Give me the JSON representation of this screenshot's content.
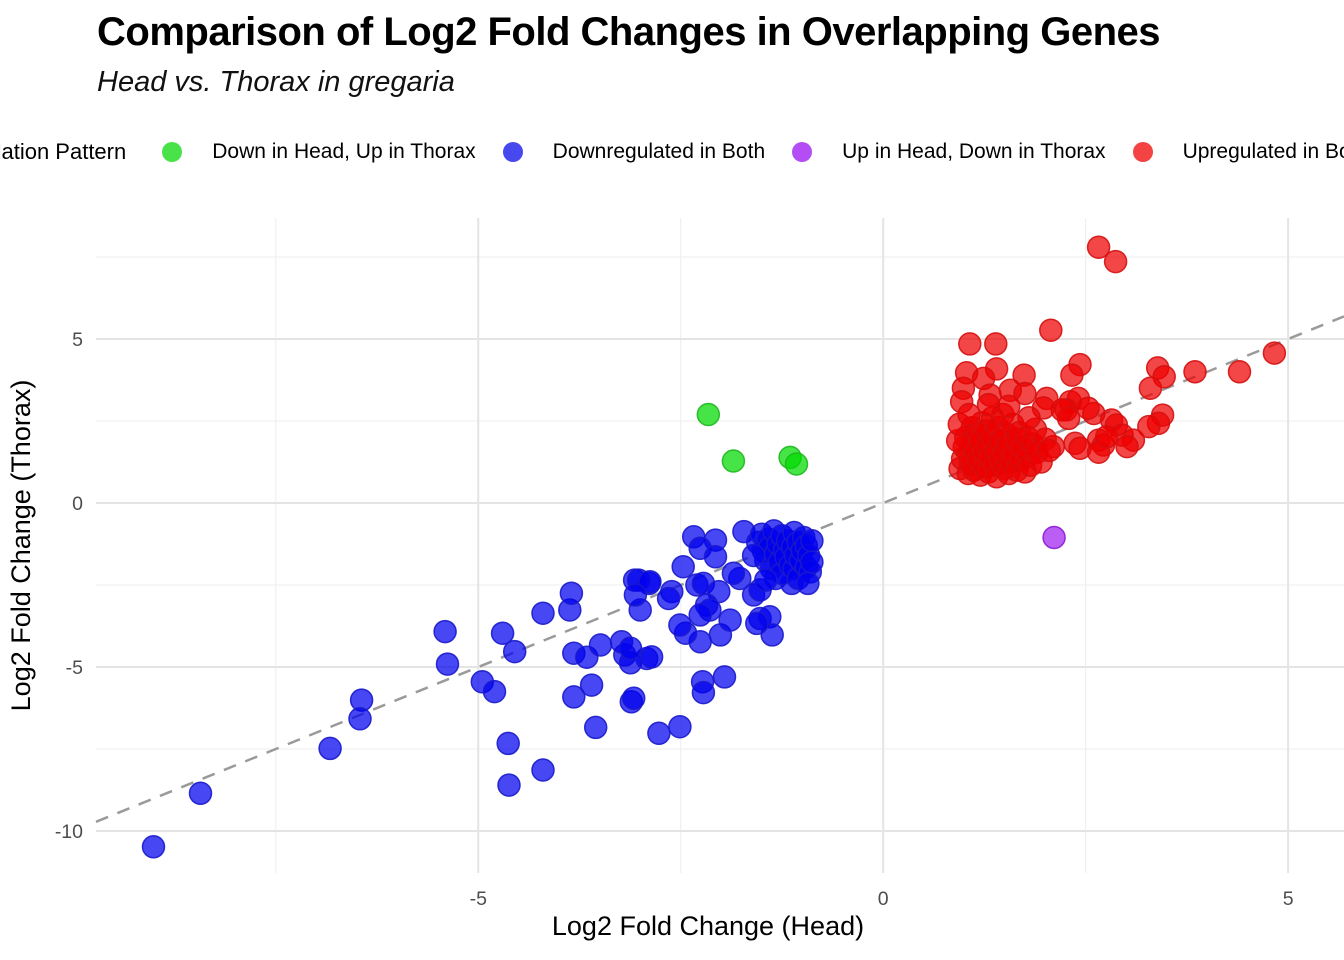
{
  "header": {
    "title": "Comparison of Log2 Fold Changes in Overlapping Genes",
    "subtitle": "Head vs. Thorax in gregaria"
  },
  "legend": {
    "title": "Regulation Pattern",
    "items": [
      {
        "label": "Down in Head, Up in Thorax",
        "color": "#4ae24a"
      },
      {
        "label": "Downregulated in Both",
        "color": "#4848ef"
      },
      {
        "label": "Up in Head, Down in Thorax",
        "color": "#b44df3"
      },
      {
        "label": "Upregulated in Both",
        "color": "#f34343"
      }
    ]
  },
  "chart_data": {
    "type": "scatter",
    "title": "Comparison of Log2 Fold Changes in Overlapping Genes",
    "subtitle": "Head vs. Thorax in gregaria",
    "xlabel": "Log2 Fold Change (Head)",
    "ylabel": "Log2 Fold Change (Thorax)",
    "xlim": [
      -9.72,
      5.69
    ],
    "ylim": [
      -11.28,
      8.69
    ],
    "grid": true,
    "legend_position": "top",
    "axis_text_color": "#4d4d4d",
    "grid_major_color": "#e4e4e4",
    "grid_minor_color": "#f0f0f0",
    "xticks": {
      "major": [
        -5,
        0,
        5
      ],
      "labels": [
        "-5",
        "0",
        "5"
      ],
      "minor": [
        -7.5,
        -2.5,
        2.5
      ]
    },
    "yticks": {
      "major": [
        5,
        0,
        -5,
        -10
      ],
      "labels": [
        "5",
        "0",
        "-5",
        "-10"
      ],
      "minor": [
        7.5,
        2.5,
        -2.5,
        -7.5
      ]
    },
    "identity_line": {
      "equation": "y = x",
      "color": "#9a9a9a",
      "style": "dashed"
    },
    "series": [
      {
        "name": "Down in Head, Up in Thorax",
        "base_color": "#00d900",
        "edge_color": "#1db81d",
        "points": [
          [
            -2.16,
            2.7
          ],
          [
            -1.85,
            1.28
          ],
          [
            -1.15,
            1.39
          ],
          [
            -1.07,
            1.19
          ]
        ]
      },
      {
        "name": "Downregulated in Both",
        "base_color": "#0000ee",
        "edge_color": "#1a1acc",
        "points": [
          [
            -9.01,
            -10.48
          ],
          [
            -8.43,
            -8.85
          ],
          [
            -6.83,
            -7.48
          ],
          [
            -6.44,
            -6.01
          ],
          [
            -6.46,
            -6.58
          ],
          [
            -5.41,
            -3.92
          ],
          [
            -5.38,
            -4.91
          ],
          [
            -4.95,
            -5.45
          ],
          [
            -4.8,
            -5.75
          ],
          [
            -4.7,
            -3.97
          ],
          [
            -4.55,
            -4.53
          ],
          [
            -4.63,
            -7.33
          ],
          [
            -4.62,
            -8.6
          ],
          [
            -4.2,
            -8.14
          ],
          [
            -4.2,
            -3.36
          ],
          [
            -3.87,
            -3.26
          ],
          [
            -3.85,
            -2.75
          ],
          [
            -3.82,
            -5.91
          ],
          [
            -3.6,
            -5.55
          ],
          [
            -3.55,
            -6.84
          ],
          [
            -3.82,
            -4.58
          ],
          [
            -3.66,
            -4.7
          ],
          [
            -3.49,
            -4.33
          ],
          [
            -3.19,
            -4.63
          ],
          [
            -3.12,
            -4.87
          ],
          [
            -2.92,
            -4.74
          ],
          [
            -3.11,
            -6.06
          ],
          [
            -3.07,
            -2.35
          ],
          [
            -2.89,
            -2.45
          ],
          [
            -2.86,
            -4.69
          ],
          [
            -2.77,
            -7.02
          ],
          [
            -2.51,
            -6.82
          ],
          [
            -2.23,
            -5.45
          ],
          [
            -1.96,
            -5.3
          ],
          [
            -2.22,
            -5.78
          ],
          [
            -3.08,
            -5.95
          ],
          [
            -2.26,
            -4.23
          ],
          [
            -2.01,
            -4.02
          ],
          [
            -2.44,
            -3.97
          ],
          [
            -3.23,
            -4.23
          ],
          [
            -3.12,
            -4.43
          ],
          [
            -3.02,
            -2.35
          ],
          [
            -2.88,
            -2.4
          ],
          [
            -2.61,
            -2.7
          ],
          [
            -2.65,
            -2.91
          ],
          [
            -2.3,
            -2.5
          ],
          [
            -2.22,
            -2.45
          ],
          [
            -2.03,
            -2.7
          ],
          [
            -1.77,
            -2.3
          ],
          [
            -1.85,
            -2.14
          ],
          [
            -1.6,
            -2.8
          ],
          [
            -1.52,
            -2.65
          ],
          [
            -1.33,
            -2.3
          ],
          [
            -1.13,
            -2.45
          ],
          [
            -2.18,
            -3.11
          ],
          [
            -2.14,
            -3.26
          ],
          [
            -3.0,
            -3.26
          ],
          [
            -3.06,
            -2.8
          ],
          [
            -2.51,
            -3.72
          ],
          [
            -2.26,
            -3.41
          ],
          [
            -1.89,
            -3.57
          ],
          [
            -1.52,
            -3.52
          ],
          [
            -1.4,
            -3.47
          ],
          [
            -2.34,
            -1.03
          ],
          [
            -2.07,
            -1.13
          ],
          [
            -2.26,
            -1.38
          ],
          [
            -1.72,
            -0.87
          ],
          [
            -2.07,
            -1.64
          ],
          [
            -2.47,
            -1.94
          ],
          [
            -1.37,
            -4.02
          ],
          [
            -1.56,
            -3.67
          ],
          [
            -1.55,
            -1.2
          ],
          [
            -1.5,
            -0.95
          ],
          [
            -1.48,
            -1.45
          ],
          [
            -1.45,
            -1.75
          ],
          [
            -1.42,
            -1.1
          ],
          [
            -1.4,
            -1.35
          ],
          [
            -1.38,
            -2.0
          ],
          [
            -1.35,
            -0.85
          ],
          [
            -1.33,
            -1.55
          ],
          [
            -1.3,
            -1.25
          ],
          [
            -1.28,
            -1.8
          ],
          [
            -1.25,
            -1.0
          ],
          [
            -1.25,
            -2.15
          ],
          [
            -1.22,
            -1.45
          ],
          [
            -1.2,
            -1.65
          ],
          [
            -1.18,
            -1.15
          ],
          [
            -1.15,
            -1.9
          ],
          [
            -1.12,
            -1.35
          ],
          [
            -1.1,
            -0.9
          ],
          [
            -1.1,
            -2.0
          ],
          [
            -1.08,
            -1.6
          ],
          [
            -1.05,
            -1.2
          ],
          [
            -1.05,
            -2.3
          ],
          [
            -1.02,
            -1.75
          ],
          [
            -1.0,
            -1.45
          ],
          [
            -0.98,
            -1.05
          ],
          [
            -0.95,
            -1.95
          ],
          [
            -0.95,
            -1.3
          ],
          [
            -0.92,
            -1.6
          ],
          [
            -0.9,
            -2.1
          ],
          [
            -0.88,
            -1.15
          ],
          [
            -0.88,
            -1.8
          ],
          [
            -1.6,
            -1.6
          ],
          [
            -1.45,
            -2.35
          ],
          [
            -0.93,
            -2.45
          ]
        ]
      },
      {
        "name": "Up in Head, Down in Thorax",
        "base_color": "#a020f0",
        "edge_color": "#8a1ad6",
        "points": [
          [
            2.11,
            -1.05
          ]
        ]
      },
      {
        "name": "Upregulated in Both",
        "base_color": "#ee0000",
        "edge_color": "#d40f0f",
        "points": [
          [
            2.66,
            7.8
          ],
          [
            2.87,
            7.36
          ],
          [
            2.07,
            5.27
          ],
          [
            1.07,
            4.85
          ],
          [
            1.39,
            4.85
          ],
          [
            4.83,
            4.57
          ],
          [
            1.03,
            3.97
          ],
          [
            1.4,
            4.09
          ],
          [
            1.24,
            3.8
          ],
          [
            2.43,
            4.22
          ],
          [
            2.33,
            3.9
          ],
          [
            4.4,
            4.0
          ],
          [
            3.39,
            4.12
          ],
          [
            3.47,
            3.85
          ],
          [
            3.85,
            4.0
          ],
          [
            1.74,
            3.9
          ],
          [
            3.3,
            3.5
          ],
          [
            3.45,
            2.68
          ],
          [
            3.4,
            2.43
          ],
          [
            3.28,
            2.33
          ],
          [
            2.31,
            3.09
          ],
          [
            2.41,
            3.19
          ],
          [
            2.26,
            2.84
          ],
          [
            2.6,
            2.73
          ],
          [
            2.53,
            2.89
          ],
          [
            2.82,
            2.53
          ],
          [
            2.88,
            2.38
          ],
          [
            2.95,
            2.07
          ],
          [
            3.09,
            1.92
          ],
          [
            3.01,
            1.72
          ],
          [
            2.37,
            1.82
          ],
          [
            2.43,
            1.67
          ],
          [
            2.66,
            1.92
          ],
          [
            2.72,
            1.77
          ],
          [
            2.21,
            2.84
          ],
          [
            2.29,
            2.58
          ],
          [
            2.1,
            1.72
          ],
          [
            2.66,
            1.55
          ],
          [
            2.76,
            2.02
          ],
          [
            0.99,
            3.5
          ],
          [
            1.32,
            3.29
          ],
          [
            1.57,
            3.44
          ],
          [
            2.02,
            3.19
          ],
          [
            0.97,
            3.09
          ],
          [
            1.75,
            3.34
          ],
          [
            1.98,
            2.9
          ],
          [
            0.95,
            1.05
          ],
          [
            0.98,
            1.35
          ],
          [
            1.0,
            1.7
          ],
          [
            1.02,
            2.0
          ],
          [
            1.05,
            0.9
          ],
          [
            1.05,
            1.5
          ],
          [
            1.08,
            1.2
          ],
          [
            1.1,
            1.85
          ],
          [
            1.1,
            2.3
          ],
          [
            1.12,
            1.0
          ],
          [
            1.15,
            1.6
          ],
          [
            1.15,
            2.1
          ],
          [
            1.18,
            1.3
          ],
          [
            1.2,
            0.85
          ],
          [
            1.2,
            1.9
          ],
          [
            1.22,
            2.45
          ],
          [
            1.25,
            1.1
          ],
          [
            1.25,
            1.55
          ],
          [
            1.28,
            2.2
          ],
          [
            1.3,
            0.95
          ],
          [
            1.3,
            1.75
          ],
          [
            1.32,
            1.4
          ],
          [
            1.35,
            2.0
          ],
          [
            1.35,
            2.6
          ],
          [
            1.38,
            1.15
          ],
          [
            1.4,
            1.6
          ],
          [
            1.4,
            0.8
          ],
          [
            1.42,
            2.3
          ],
          [
            1.45,
            1.35
          ],
          [
            1.45,
            1.9
          ],
          [
            1.48,
            2.7
          ],
          [
            1.5,
            1.05
          ],
          [
            1.5,
            1.55
          ],
          [
            1.52,
            2.1
          ],
          [
            1.55,
            0.9
          ],
          [
            1.55,
            1.75
          ],
          [
            1.58,
            1.25
          ],
          [
            1.6,
            2.4
          ],
          [
            1.62,
            1.5
          ],
          [
            1.65,
            1.0
          ],
          [
            1.65,
            1.95
          ],
          [
            1.68,
            2.15
          ],
          [
            1.7,
            1.3
          ],
          [
            1.72,
            1.7
          ],
          [
            1.75,
            0.95
          ],
          [
            1.78,
            2.0
          ],
          [
            1.8,
            1.45
          ],
          [
            1.82,
            1.15
          ],
          [
            1.85,
            1.8
          ],
          [
            1.88,
            2.25
          ],
          [
            1.9,
            1.55
          ],
          [
            1.95,
            1.25
          ],
          [
            2.0,
            1.95
          ],
          [
            2.05,
            1.6
          ],
          [
            0.92,
            1.9
          ],
          [
            0.94,
            2.4
          ],
          [
            1.06,
            2.7
          ],
          [
            1.3,
            3.0
          ],
          [
            1.55,
            2.95
          ],
          [
            1.8,
            2.6
          ]
        ]
      }
    ]
  }
}
